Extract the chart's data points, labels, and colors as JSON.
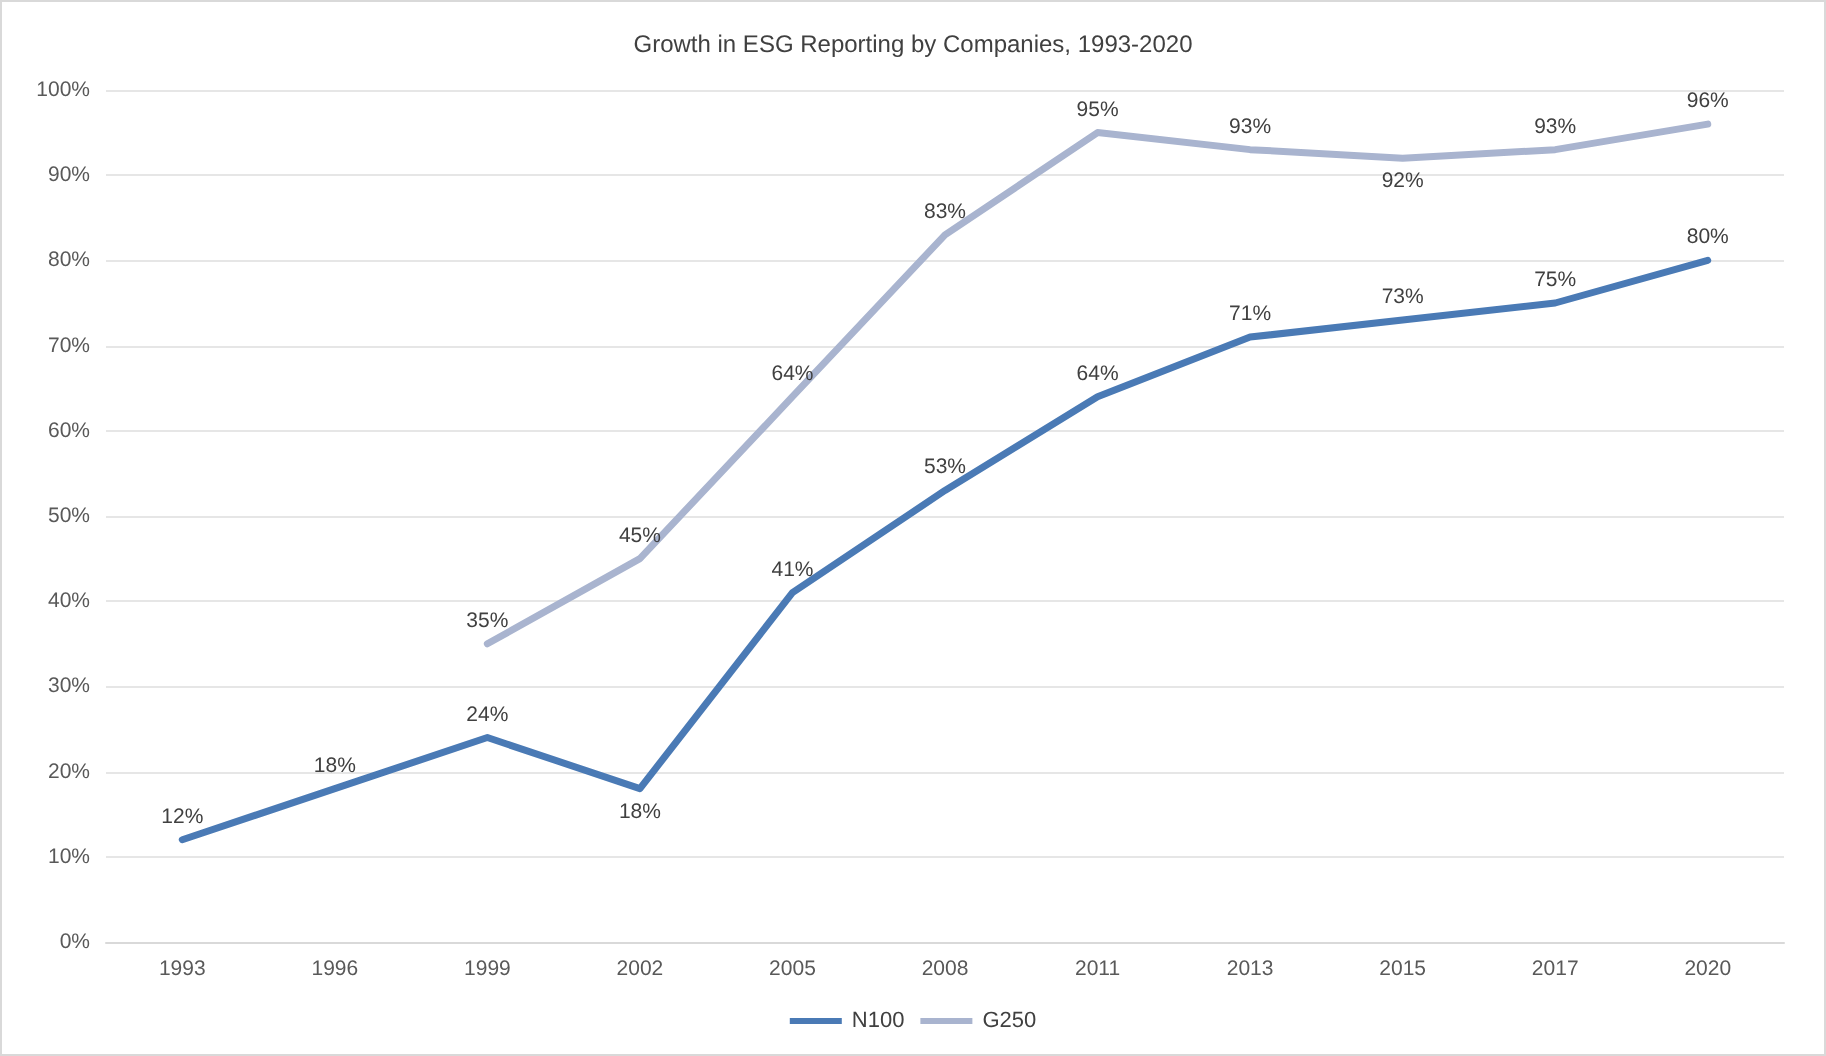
{
  "chart_data": {
    "type": "line",
    "title": "Growth in ESG Reporting by Companies, 1993-2020",
    "categories": [
      "1993",
      "1996",
      "1999",
      "2002",
      "2005",
      "2008",
      "2011",
      "2013",
      "2015",
      "2017",
      "2020"
    ],
    "series": [
      {
        "name": "N100",
        "color": "#4a7ab5",
        "values": [
          12,
          18,
          24,
          18,
          41,
          53,
          64,
          71,
          73,
          75,
          80
        ],
        "value_labels": [
          "12%",
          "18%",
          "24%",
          "18%",
          "41%",
          "53%",
          "64%",
          "71%",
          "73%",
          "75%",
          "80%"
        ]
      },
      {
        "name": "G250",
        "color": "#a9b4cf",
        "values": [
          null,
          null,
          35,
          45,
          64,
          83,
          95,
          93,
          92,
          93,
          96
        ],
        "value_labels": [
          null,
          null,
          "35%",
          "45%",
          "64%",
          "83%",
          "95%",
          "93%",
          "92%",
          "93%",
          "96%"
        ]
      }
    ],
    "ylim": [
      0,
      100
    ],
    "yticks": [
      {
        "value": 0,
        "label": "0%"
      },
      {
        "value": 10,
        "label": "10%"
      },
      {
        "value": 20,
        "label": "20%"
      },
      {
        "value": 30,
        "label": "30%"
      },
      {
        "value": 40,
        "label": "40%"
      },
      {
        "value": 50,
        "label": "50%"
      },
      {
        "value": 60,
        "label": "60%"
      },
      {
        "value": 70,
        "label": "70%"
      },
      {
        "value": 80,
        "label": "80%"
      },
      {
        "value": 90,
        "label": "90%"
      },
      {
        "value": 100,
        "label": "100%"
      }
    ],
    "grid": "y",
    "legend": "bottom",
    "marker": "none",
    "line_style": "solid"
  }
}
